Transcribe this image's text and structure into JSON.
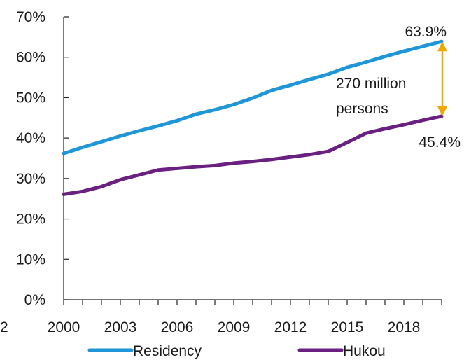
{
  "chart_data": {
    "type": "line",
    "title": "",
    "xlabel": "",
    "ylabel": "",
    "x": [
      2000,
      2001,
      2002,
      2003,
      2004,
      2005,
      2006,
      2007,
      2008,
      2009,
      2010,
      2011,
      2012,
      2013,
      2014,
      2015,
      2016,
      2017,
      2018,
      2019,
      2020
    ],
    "xlim": [
      2000,
      2020
    ],
    "ylim": [
      0,
      70
    ],
    "x_tick_labels": [
      "2000",
      "2003",
      "2006",
      "2009",
      "2012",
      "2015",
      "2018"
    ],
    "x_cut_label": "2",
    "y_tick_labels": [
      "0%",
      "10%",
      "20%",
      "30%",
      "40%",
      "50%",
      "60%",
      "70%"
    ],
    "grid": false,
    "legend_position": "bottom",
    "series": [
      {
        "name": "Residency",
        "color": "#1e96d8",
        "values": [
          36.2,
          37.7,
          39.1,
          40.5,
          41.8,
          43.0,
          44.3,
          45.9,
          47.0,
          48.3,
          49.9,
          51.8,
          53.1,
          54.5,
          55.8,
          57.5,
          58.8,
          60.2,
          61.5,
          62.7,
          63.9
        ]
      },
      {
        "name": "Hukou",
        "color": "#6a2080",
        "values": [
          26.1,
          26.8,
          28.0,
          29.7,
          30.9,
          32.1,
          32.5,
          32.9,
          33.2,
          33.8,
          34.2,
          34.7,
          35.3,
          35.9,
          36.7,
          38.9,
          41.2,
          42.3,
          43.3,
          44.4,
          45.4
        ]
      }
    ],
    "annotations": {
      "end_residency": "63.9%",
      "end_hukou": "45.4%",
      "gap_line1": "270 million",
      "gap_line2": "persons",
      "arrow_color": "#f0a800"
    }
  }
}
